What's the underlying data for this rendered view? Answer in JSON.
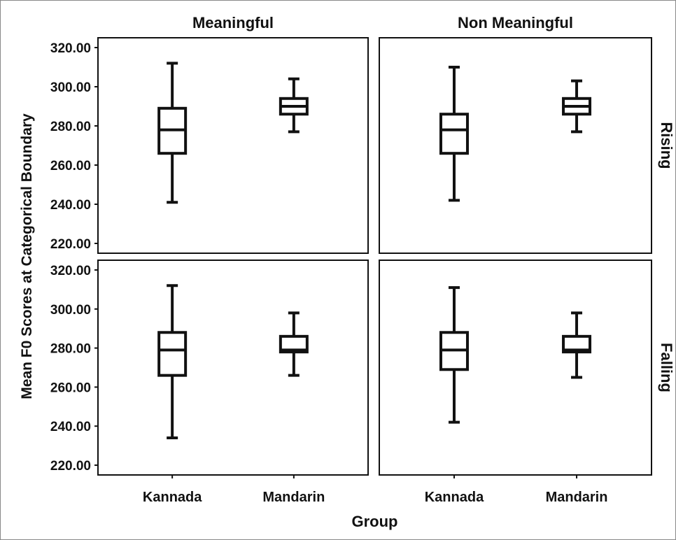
{
  "chart_data": {
    "type": "boxplot",
    "xlabel": "Group",
    "ylabel": "Mean F0 Scores at Categorical Boundary",
    "column_facets": [
      "Meaningful",
      "Non Meaningful"
    ],
    "row_facets": [
      "Rising",
      "Falling"
    ],
    "categories": [
      "Kannada",
      "Mandarin"
    ],
    "ylim": [
      215,
      325
    ],
    "yticks": [
      220,
      240,
      260,
      280,
      300,
      320
    ],
    "ytick_labels": [
      "220.00",
      "240.00",
      "260.00",
      "280.00",
      "300.00",
      "320.00"
    ],
    "grid": false,
    "panels": [
      {
        "row": "Rising",
        "column": "Meaningful",
        "boxes": [
          {
            "category": "Kannada",
            "min": 241,
            "q1": 266,
            "median": 278,
            "q3": 289,
            "max": 312
          },
          {
            "category": "Mandarin",
            "min": 277,
            "q1": 286,
            "median": 290,
            "q3": 294,
            "max": 304
          }
        ]
      },
      {
        "row": "Rising",
        "column": "Non Meaningful",
        "boxes": [
          {
            "category": "Kannada",
            "min": 242,
            "q1": 266,
            "median": 278,
            "q3": 286,
            "max": 310
          },
          {
            "category": "Mandarin",
            "min": 277,
            "q1": 286,
            "median": 290,
            "q3": 294,
            "max": 303
          }
        ]
      },
      {
        "row": "Falling",
        "column": "Meaningful",
        "boxes": [
          {
            "category": "Kannada",
            "min": 234,
            "q1": 266,
            "median": 279,
            "q3": 288,
            "max": 312
          },
          {
            "category": "Mandarin",
            "min": 266,
            "q1": 278,
            "median": 279,
            "q3": 286,
            "max": 298
          }
        ]
      },
      {
        "row": "Falling",
        "column": "Non Meaningful",
        "boxes": [
          {
            "category": "Kannada",
            "min": 242,
            "q1": 269,
            "median": 279,
            "q3": 288,
            "max": 311
          },
          {
            "category": "Mandarin",
            "min": 265,
            "q1": 278,
            "median": 279,
            "q3": 286,
            "max": 298
          }
        ]
      }
    ]
  }
}
